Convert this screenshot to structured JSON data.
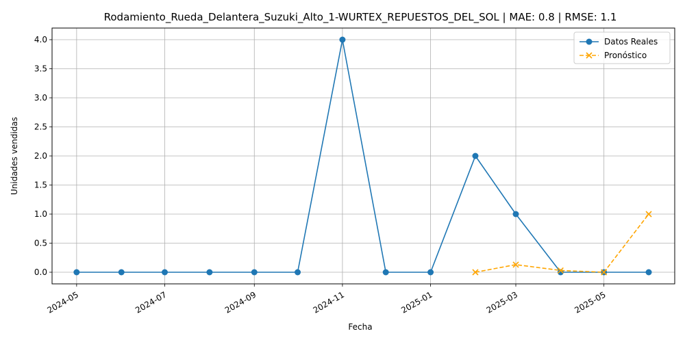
{
  "chart_data": {
    "type": "line",
    "title": "Rodamiento_Rueda_Delantera_Suzuki_Alto_1-WURTEX_REPUESTOS_DEL_SOL | MAE: 0.8 | RMSE: 1.1",
    "xlabel": "Fecha",
    "ylabel": "Unidades vendidas",
    "ylim": [
      -0.2,
      4.2
    ],
    "xlim": [
      "2024-04-14",
      "2025-06-19"
    ],
    "grid": true,
    "legend_position": "top-right",
    "x_ticks": [
      "2024-05",
      "2024-07",
      "2024-09",
      "2024-11",
      "2025-01",
      "2025-03",
      "2025-05"
    ],
    "y_ticks": [
      "0.0",
      "0.5",
      "1.0",
      "1.5",
      "2.0",
      "2.5",
      "3.0",
      "3.5",
      "4.0"
    ],
    "series": [
      {
        "name": "Datos Reales",
        "color": "#1f77b4",
        "marker": "circle",
        "line_style": "solid",
        "points": [
          {
            "x": "2024-05-01",
            "y": 0
          },
          {
            "x": "2024-06-01",
            "y": 0
          },
          {
            "x": "2024-07-01",
            "y": 0
          },
          {
            "x": "2024-08-01",
            "y": 0
          },
          {
            "x": "2024-09-01",
            "y": 0
          },
          {
            "x": "2024-10-01",
            "y": 0
          },
          {
            "x": "2024-11-01",
            "y": 4
          },
          {
            "x": "2024-12-01",
            "y": 0
          },
          {
            "x": "2025-01-01",
            "y": 0
          },
          {
            "x": "2025-02-01",
            "y": 2
          },
          {
            "x": "2025-03-01",
            "y": 1
          },
          {
            "x": "2025-04-01",
            "y": 0
          },
          {
            "x": "2025-05-01",
            "y": 0
          },
          {
            "x": "2025-06-01",
            "y": 0
          }
        ]
      },
      {
        "name": "Pronóstico",
        "color": "#ffa500",
        "marker": "x",
        "line_style": "dashed",
        "points": [
          {
            "x": "2025-02-01",
            "y": 0.0
          },
          {
            "x": "2025-03-01",
            "y": 0.13
          },
          {
            "x": "2025-04-01",
            "y": 0.03
          },
          {
            "x": "2025-05-01",
            "y": 0.0
          },
          {
            "x": "2025-06-01",
            "y": 1.0
          }
        ]
      }
    ]
  }
}
